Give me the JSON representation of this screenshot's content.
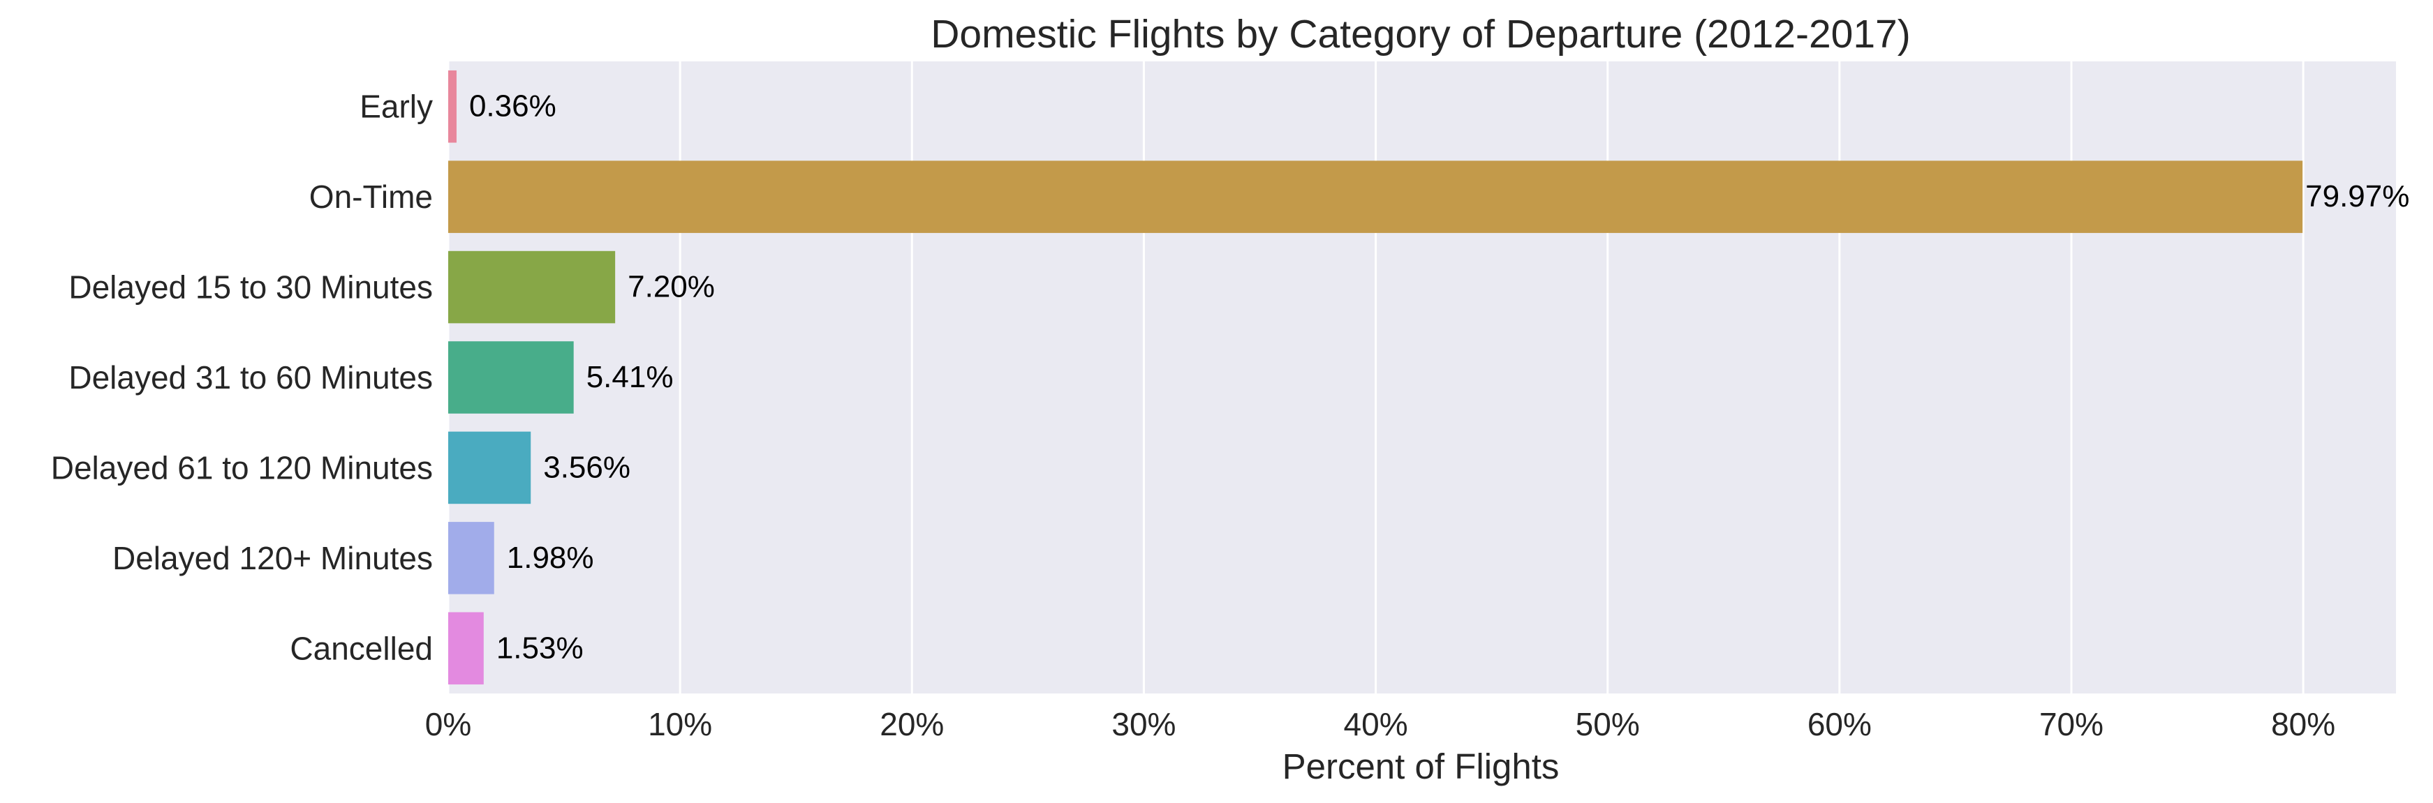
{
  "chart_data": {
    "type": "bar",
    "orientation": "horizontal",
    "title": "Domestic Flights by Category of Departure (2012-2017)",
    "xlabel": "Percent of Flights",
    "ylabel": "",
    "xlim": [
      0,
      84
    ],
    "xticks": [
      0,
      10,
      20,
      30,
      40,
      50,
      60,
      70,
      80
    ],
    "xtick_labels": [
      "0%",
      "10%",
      "20%",
      "30%",
      "40%",
      "50%",
      "60%",
      "70%",
      "80%"
    ],
    "grid": true,
    "background": "#eaeaf2",
    "categories": [
      "Early",
      "On-Time",
      "Delayed 15 to 30 Minutes",
      "Delayed 31 to 60 Minutes",
      "Delayed 61 to 120 Minutes",
      "Delayed 120+ Minutes",
      "Cancelled"
    ],
    "values": [
      0.36,
      79.97,
      7.2,
      5.41,
      3.56,
      1.98,
      1.53
    ],
    "value_labels": [
      "0.36%",
      "79.97%",
      "7.20%",
      "5.41%",
      "3.56%",
      "1.98%",
      "1.53%"
    ],
    "colors": [
      "#e8879c",
      "#c39a4a",
      "#87a747",
      "#48ad8a",
      "#4aabc0",
      "#a1acea",
      "#e38ae0"
    ]
  }
}
